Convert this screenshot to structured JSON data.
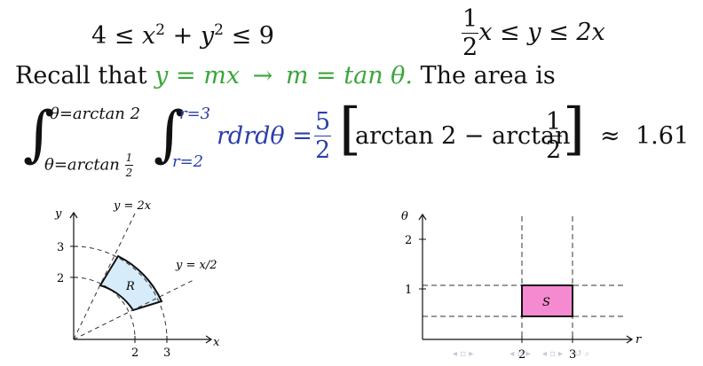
{
  "constraints": {
    "left": {
      "a": "4",
      "le1": "≤",
      "x": "x",
      "exp": "2",
      "plus": "+",
      "y": "y",
      "le2": "≤",
      "b": "9"
    },
    "right": {
      "num": "1",
      "den": "2",
      "x": "x",
      "le1": "≤",
      "y": "y",
      "le2": "≤",
      "rhs": "2x"
    }
  },
  "recall": {
    "prefix": "Recall that",
    "eq1": "y = mx",
    "arrow": "→",
    "eq2": "m = tan θ.",
    "suffix": "The area is"
  },
  "integral": {
    "outer_upper": "θ=arctan 2",
    "outer_lower_prefix": "θ=arctan",
    "outer_lower_num": "1",
    "outer_lower_den": "2",
    "inner_upper": "r=3",
    "inner_lower": "r=2",
    "integrand": "rdrdθ =",
    "coef_num": "5",
    "coef_den": "2",
    "left_bracket": "[",
    "bracket_text": "arctan 2 − arctan",
    "frac_num": "1",
    "frac_den": "2",
    "right_bracket": "]",
    "approx": "≈",
    "result": "1.61"
  },
  "figure_left": {
    "y_axis_label": "y",
    "x_axis_label": "x",
    "line_steep_label": "y = 2x",
    "line_shallow_label": "y = x/2",
    "region_label": "R",
    "x_ticks": [
      "2",
      "3"
    ],
    "y_ticks": [
      "2",
      "3"
    ],
    "region_fill": "#d6ecfa"
  },
  "figure_right": {
    "y_axis_label": "θ",
    "x_axis_label": "r",
    "region_label": "S",
    "x_ticks": [
      "2",
      "3"
    ],
    "y_ticks": [
      "1",
      "2"
    ],
    "region_fill": "#f58ad0"
  }
}
